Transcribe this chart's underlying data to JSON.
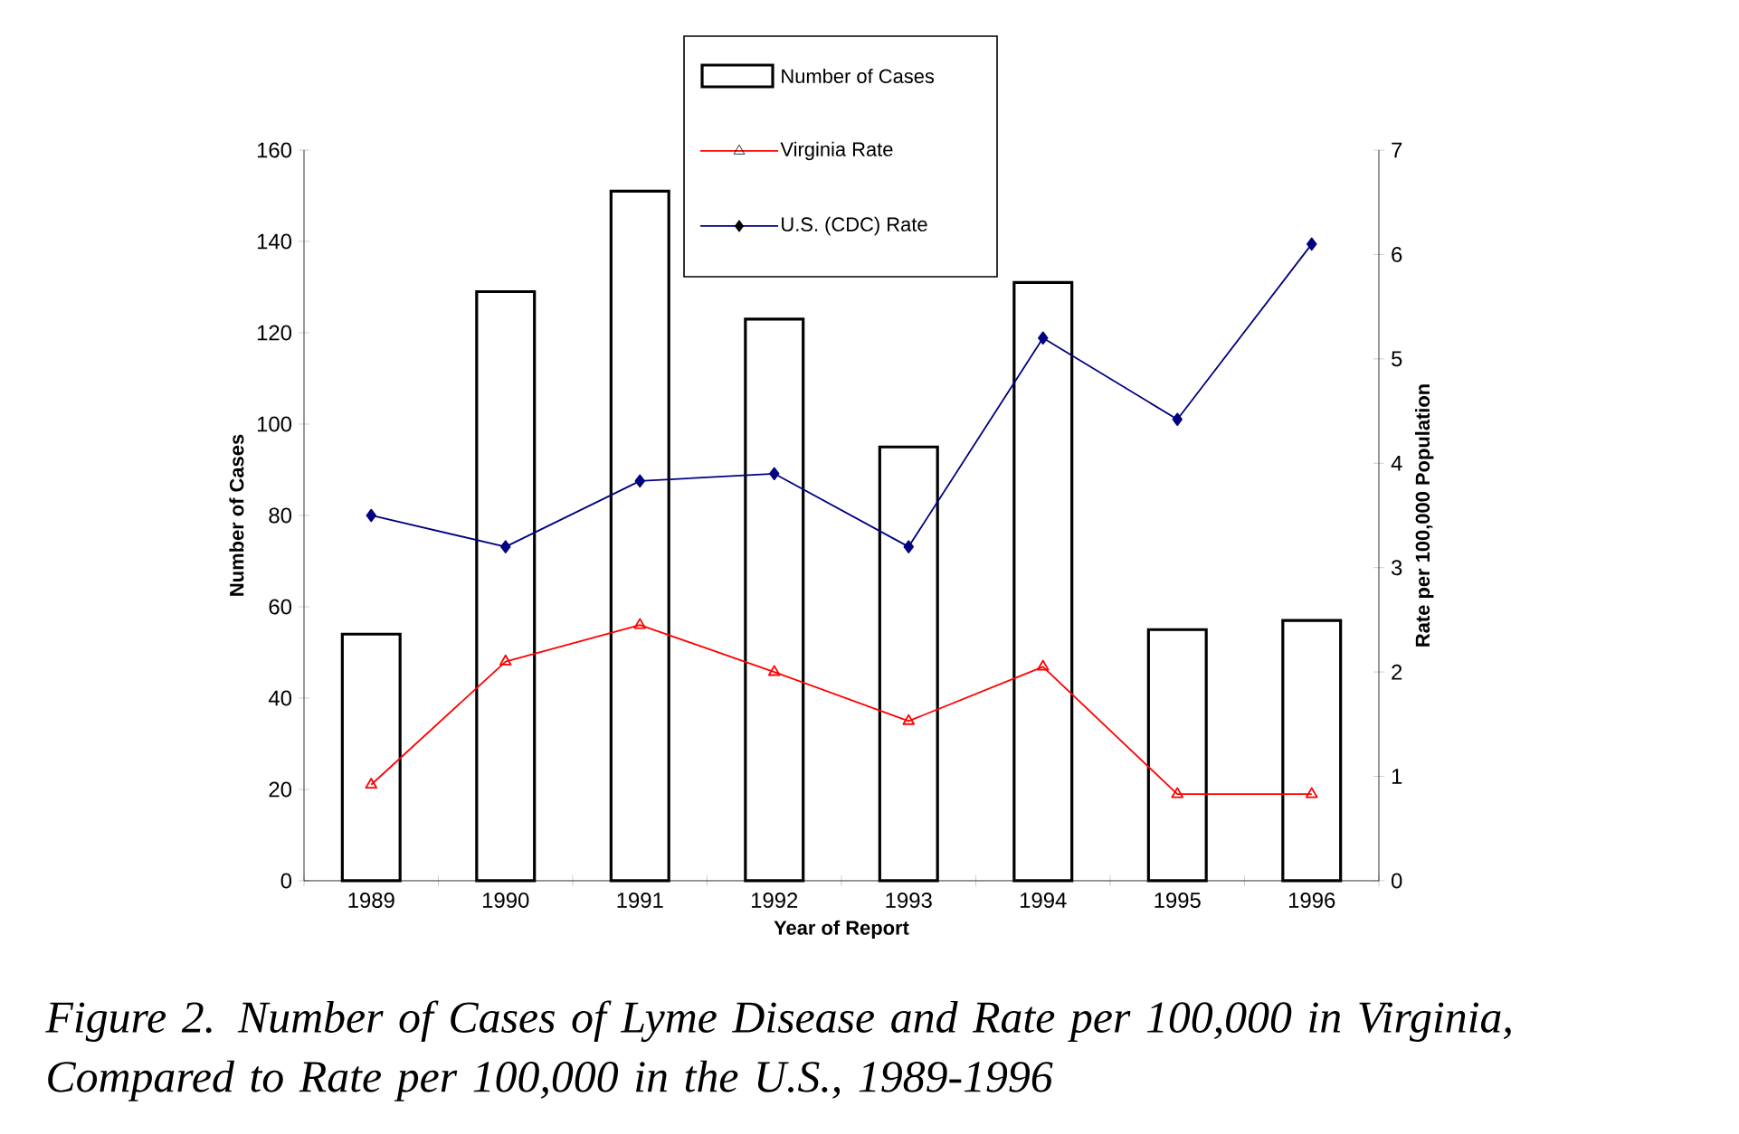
{
  "chart_data": {
    "type": "bar",
    "xlabel": "Year of Report",
    "ylabel": "Number of Cases",
    "y2label": "Rate per 100,000 Population",
    "categories": [
      "1989",
      "1990",
      "1991",
      "1992",
      "1993",
      "1994",
      "1995",
      "1996"
    ],
    "series": [
      {
        "name": "Number of Cases",
        "color": "#ffffff",
        "values": [
          54,
          129,
          151,
          123,
          95,
          131,
          55,
          57
        ]
      },
      {
        "name": "Virginia Rate",
        "type": "line",
        "axis": "y2",
        "color": "#ff0000",
        "marker": "triangle",
        "values": [
          0.92,
          2.1,
          2.45,
          2.0,
          1.53,
          2.05,
          0.83,
          0.83
        ]
      },
      {
        "name": "U.S. (CDC) Rate",
        "type": "line",
        "axis": "y2",
        "color": "#000080",
        "marker": "diamond",
        "values": [
          3.5,
          3.2,
          3.83,
          3.9,
          3.2,
          5.2,
          4.42,
          6.1
        ]
      }
    ],
    "ylim": [
      0,
      160
    ],
    "yticks": [
      0,
      20,
      40,
      60,
      80,
      100,
      120,
      140,
      160
    ],
    "y2lim": [
      0,
      7
    ],
    "y2ticks": [
      0,
      1,
      2,
      3,
      4,
      5,
      6,
      7
    ],
    "legend": "top",
    "grid": false,
    "annotations": [
      "*Figure 2. Number of Cases of Lyme Disease and Rate per 100,000 in Virginia, Compared to Rate per 100,000 in  the U.S., 1989-1996*"
    ]
  }
}
